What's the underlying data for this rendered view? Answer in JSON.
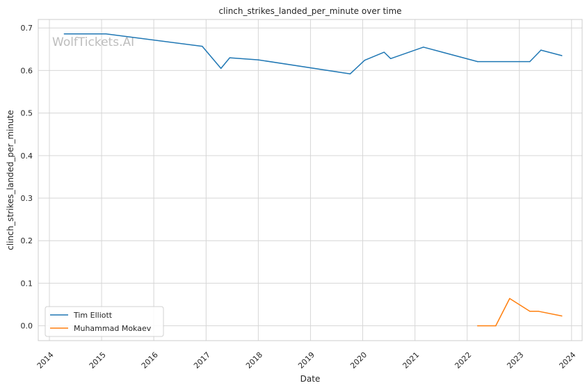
{
  "chart_data": {
    "type": "line",
    "title": "clinch_strikes_landed_per_minute over time",
    "xlabel": "Date",
    "ylabel": "clinch_strikes_landed_per_minute",
    "watermark": "WolfTickets.AI",
    "x_ticks": [
      "2014",
      "2015",
      "2016",
      "2017",
      "2018",
      "2019",
      "2020",
      "2021",
      "2022",
      "2023",
      "2024"
    ],
    "y_ticks": [
      "0.0",
      "0.1",
      "0.2",
      "0.3",
      "0.4",
      "0.5",
      "0.6",
      "0.7"
    ],
    "xlim": [
      "2013-10-15",
      "2024-03-15"
    ],
    "ylim": [
      -0.035,
      0.72
    ],
    "grid": true,
    "legend_position": "lower-left",
    "series": [
      {
        "name": "Tim Elliott",
        "color": "#1f77b4",
        "points": [
          {
            "x": "2014-04-15",
            "y": 0.686
          },
          {
            "x": "2015-02-01",
            "y": 0.686
          },
          {
            "x": "2016-12-05",
            "y": 0.657
          },
          {
            "x": "2017-04-15",
            "y": 0.605
          },
          {
            "x": "2017-06-15",
            "y": 0.63
          },
          {
            "x": "2018-01-01",
            "y": 0.625
          },
          {
            "x": "2019-10-05",
            "y": 0.592
          },
          {
            "x": "2020-01-15",
            "y": 0.624
          },
          {
            "x": "2020-05-30",
            "y": 0.643
          },
          {
            "x": "2020-07-15",
            "y": 0.628
          },
          {
            "x": "2021-03-01",
            "y": 0.655
          },
          {
            "x": "2022-03-15",
            "y": 0.621
          },
          {
            "x": "2023-03-15",
            "y": 0.621
          },
          {
            "x": "2023-06-01",
            "y": 0.648
          },
          {
            "x": "2023-10-25",
            "y": 0.635
          }
        ]
      },
      {
        "name": "Muhammad Mokaev",
        "color": "#ff7f0e",
        "points": [
          {
            "x": "2022-03-15",
            "y": 0.0
          },
          {
            "x": "2022-07-20",
            "y": 0.0
          },
          {
            "x": "2022-10-25",
            "y": 0.064
          },
          {
            "x": "2023-03-15",
            "y": 0.034
          },
          {
            "x": "2023-05-15",
            "y": 0.034
          },
          {
            "x": "2023-10-25",
            "y": 0.023
          }
        ]
      }
    ]
  }
}
